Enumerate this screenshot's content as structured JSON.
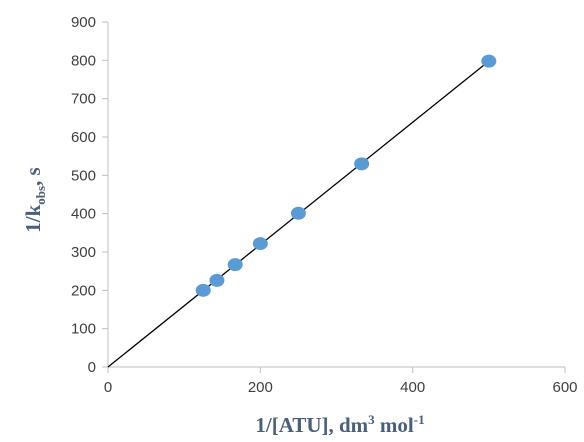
{
  "chart_data": {
    "type": "scatter",
    "xlabel": {
      "base": "1/[ATU], dm",
      "sup1": "3",
      "mid": " mol",
      "sup2": "-1"
    },
    "ylabel": {
      "base": "1/k",
      "sub": "obs",
      "tail": ", s"
    },
    "xlim": [
      0,
      600
    ],
    "ylim": [
      0,
      900
    ],
    "xticks": [
      0,
      200,
      400,
      600
    ],
    "yticks": [
      0,
      100,
      200,
      300,
      400,
      500,
      600,
      700,
      800,
      900
    ],
    "grid": false,
    "series": [
      {
        "marker_color": "#5b9bd5",
        "points": [
          {
            "x": 125,
            "y": 200
          },
          {
            "x": 143,
            "y": 226
          },
          {
            "x": 167,
            "y": 267
          },
          {
            "x": 200,
            "y": 322
          },
          {
            "x": 250,
            "y": 401
          },
          {
            "x": 333,
            "y": 530
          },
          {
            "x": 500,
            "y": 798
          }
        ]
      }
    ],
    "trendline": {
      "type": "linear",
      "color": "#000000",
      "from": {
        "x": 0,
        "y": 0
      },
      "to": {
        "x": 500,
        "y": 798
      }
    }
  }
}
